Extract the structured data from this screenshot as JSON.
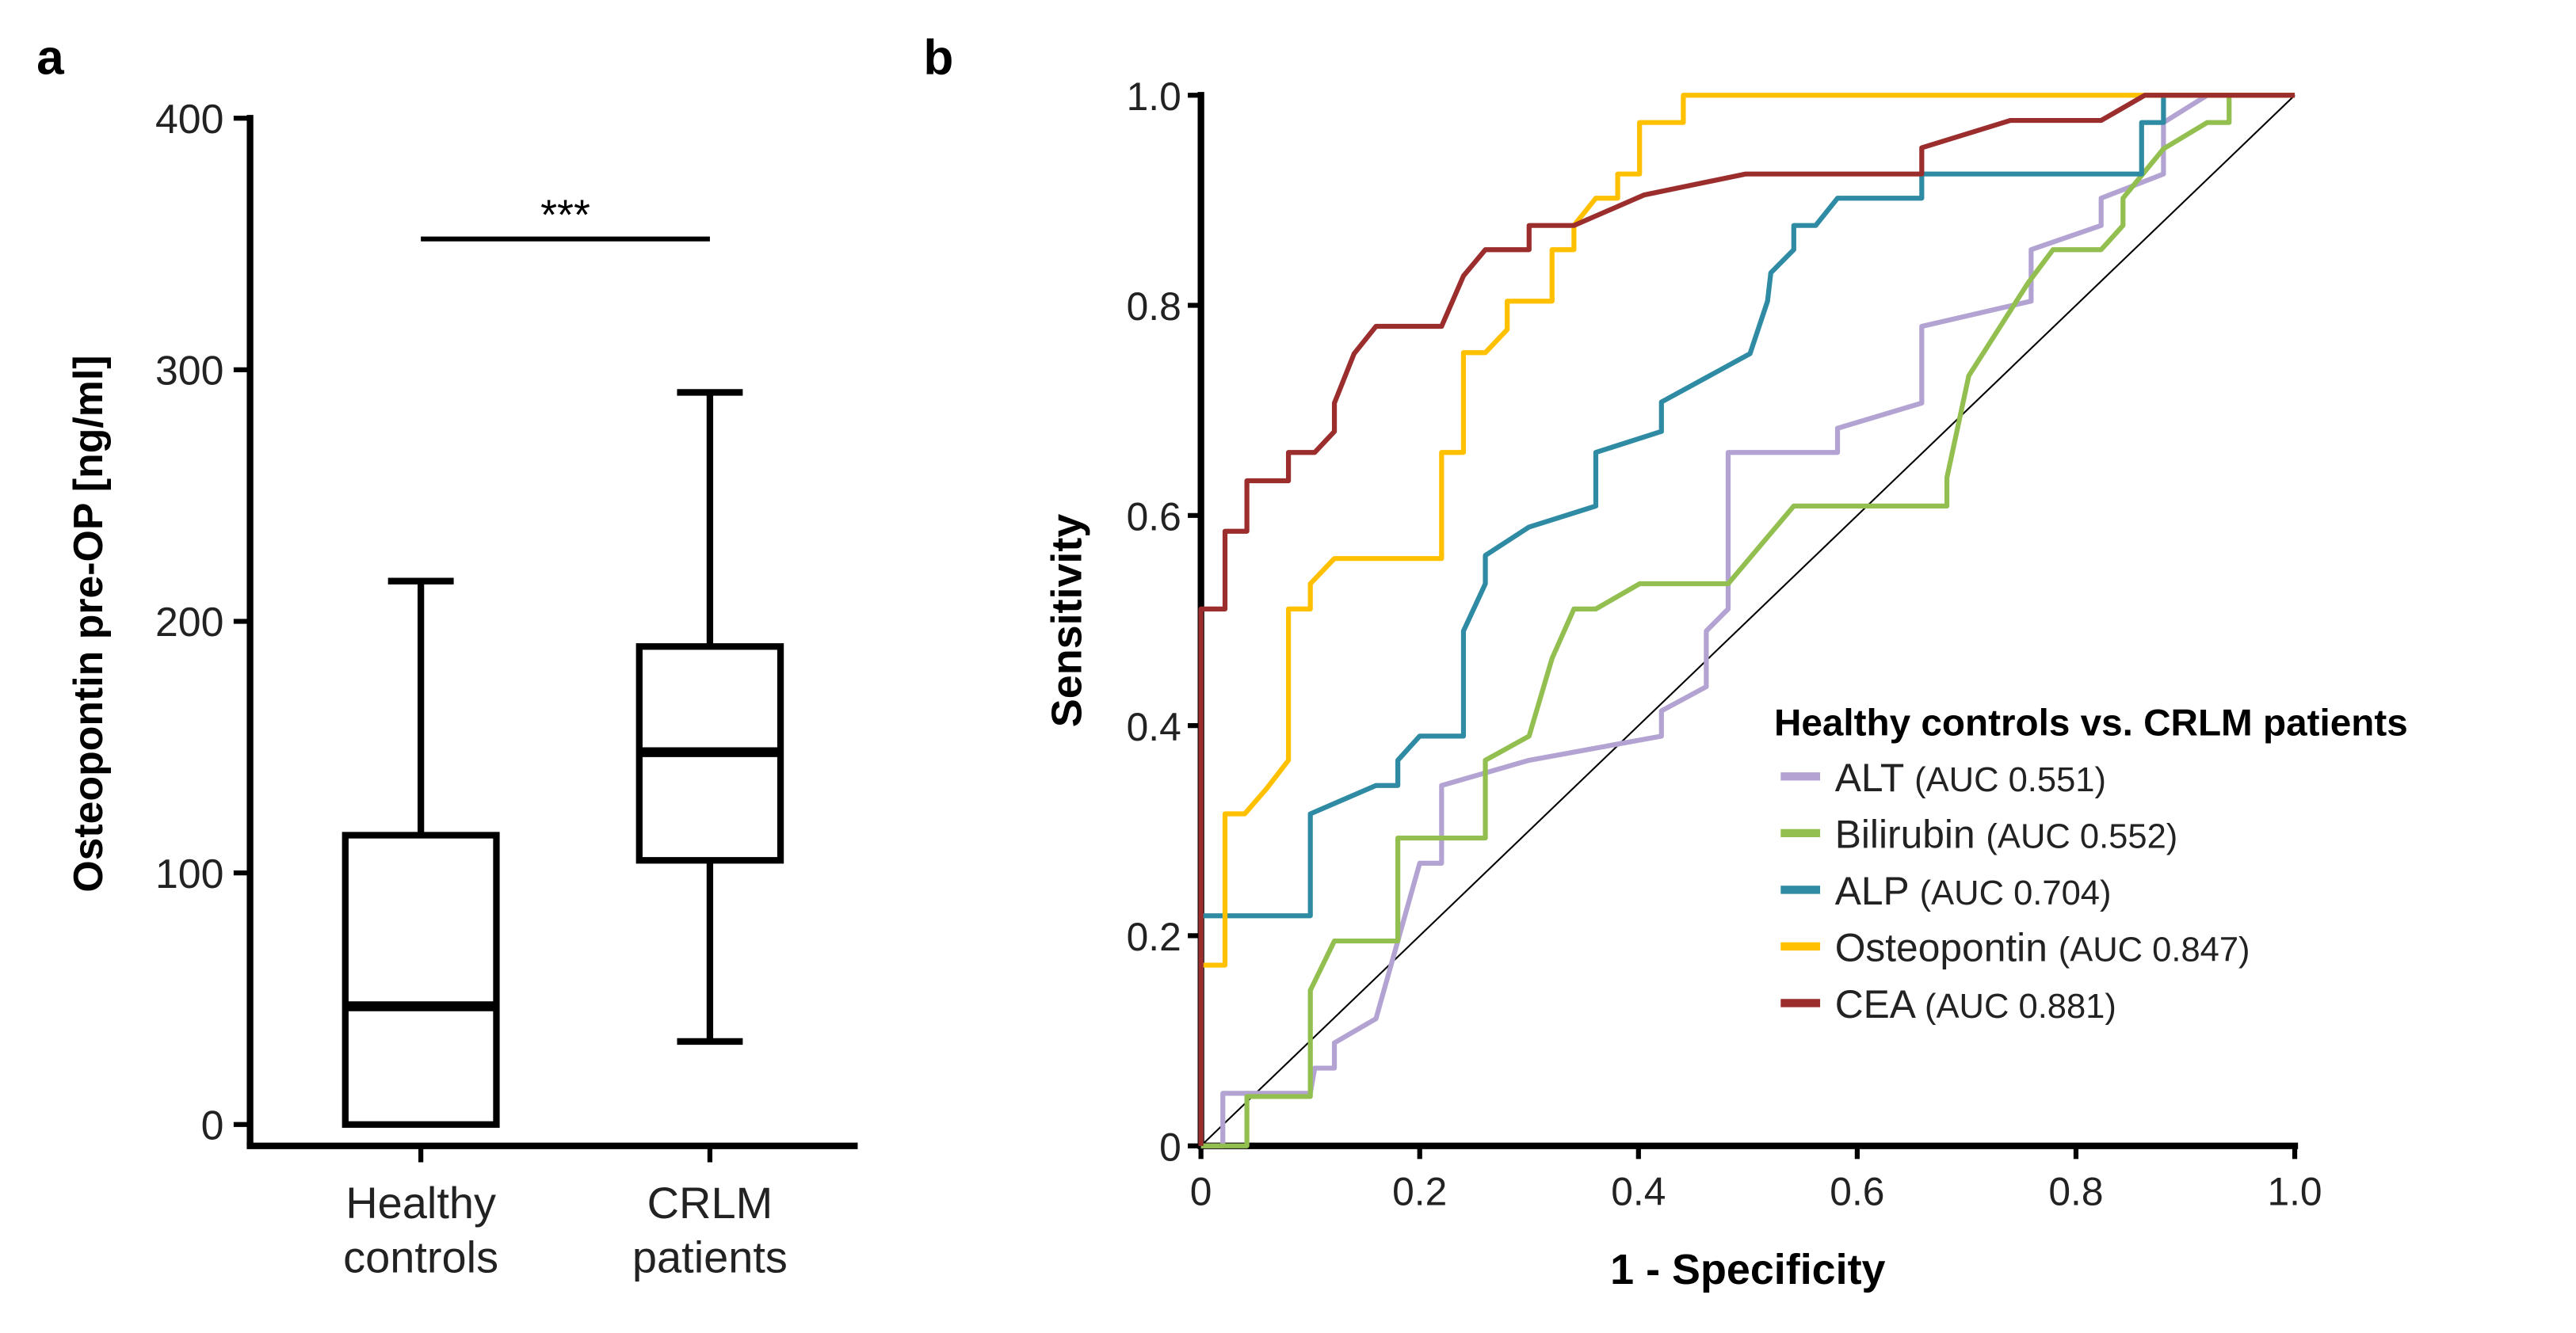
{
  "chart_data": [
    {
      "panel_label": "a",
      "type": "box",
      "ylabel": "Osteopontin pre-OP [ng/ml]",
      "ylim": [
        0,
        400
      ],
      "yticks": [
        "0",
        "100",
        "200",
        "300",
        "400"
      ],
      "categories": [
        [
          "Healthy",
          "controls"
        ],
        [
          "CRLM",
          "patients"
        ]
      ],
      "boxes": [
        {
          "name": "Healthy controls",
          "min": 0,
          "q1": 0,
          "median": 47,
          "q3": 115,
          "max": 216
        },
        {
          "name": "CRLM patients",
          "min": 33,
          "q1": 105,
          "median": 148,
          "q3": 190,
          "max": 291
        }
      ],
      "significance": {
        "label": "***",
        "value": 352
      }
    },
    {
      "panel_label": "b",
      "type": "line",
      "xlabel": "1 - Specificity",
      "ylabel": "Sensitivity",
      "xlim": [
        0,
        1
      ],
      "ylim": [
        0,
        1
      ],
      "xticks": [
        "0",
        "0.2",
        "0.4",
        "0.6",
        "0.8",
        "1.0"
      ],
      "yticks": [
        "0",
        "0.2",
        "0.4",
        "0.6",
        "0.8",
        "1.0"
      ],
      "legend": {
        "title": "Healthy controls vs. CRLM patients",
        "placement": "bottom-right"
      },
      "series": [
        {
          "name": "ALT",
          "auc_label": "(AUC 0.551)",
          "color": "#b3a3d2",
          "points": [
            [
              0,
              0
            ],
            [
              0.02,
              0
            ],
            [
              0.02,
              0.05
            ],
            [
              0.1,
              0.05
            ],
            [
              0.104,
              0.074
            ],
            [
              0.122,
              0.074
            ],
            [
              0.122,
              0.098
            ],
            [
              0.16,
              0.121
            ],
            [
              0.2,
              0.269
            ],
            [
              0.22,
              0.269
            ],
            [
              0.22,
              0.343
            ],
            [
              0.3,
              0.367
            ],
            [
              0.421,
              0.39
            ],
            [
              0.421,
              0.414
            ],
            [
              0.462,
              0.437
            ],
            [
              0.462,
              0.49
            ],
            [
              0.482,
              0.511
            ],
            [
              0.482,
              0.66
            ],
            [
              0.582,
              0.66
            ],
            [
              0.582,
              0.683
            ],
            [
              0.659,
              0.707
            ],
            [
              0.659,
              0.78
            ],
            [
              0.759,
              0.804
            ],
            [
              0.759,
              0.853
            ],
            [
              0.823,
              0.876
            ],
            [
              0.823,
              0.902
            ],
            [
              0.88,
              0.925
            ],
            [
              0.88,
              0.974
            ],
            [
              0.92,
              1
            ],
            [
              1,
              1
            ]
          ]
        },
        {
          "name": "Bilirubin",
          "auc_label": "(AUC 0.552)",
          "color": "#92bf4f",
          "points": [
            [
              0,
              0
            ],
            [
              0.042,
              0
            ],
            [
              0.042,
              0.047
            ],
            [
              0.1,
              0.047
            ],
            [
              0.1,
              0.148
            ],
            [
              0.122,
              0.195
            ],
            [
              0.18,
              0.195
            ],
            [
              0.18,
              0.293
            ],
            [
              0.26,
              0.293
            ],
            [
              0.26,
              0.367
            ],
            [
              0.3,
              0.39
            ],
            [
              0.321,
              0.464
            ],
            [
              0.341,
              0.511
            ],
            [
              0.361,
              0.511
            ],
            [
              0.401,
              0.535
            ],
            [
              0.482,
              0.535
            ],
            [
              0.542,
              0.609
            ],
            [
              0.682,
              0.609
            ],
            [
              0.682,
              0.636
            ],
            [
              0.702,
              0.733
            ],
            [
              0.756,
              0.821
            ],
            [
              0.779,
              0.853
            ],
            [
              0.823,
              0.853
            ],
            [
              0.843,
              0.876
            ],
            [
              0.843,
              0.902
            ],
            [
              0.88,
              0.949
            ],
            [
              0.92,
              0.974
            ],
            [
              0.94,
              0.974
            ],
            [
              0.94,
              1
            ],
            [
              1,
              1
            ]
          ]
        },
        {
          "name": "ALP",
          "auc_label": "(AUC 0.704)",
          "color": "#2e8ba3",
          "points": [
            [
              0,
              0
            ],
            [
              0,
              0.219
            ],
            [
              0.1,
              0.219
            ],
            [
              0.1,
              0.316
            ],
            [
              0.16,
              0.343
            ],
            [
              0.18,
              0.343
            ],
            [
              0.18,
              0.367
            ],
            [
              0.2,
              0.39
            ],
            [
              0.24,
              0.39
            ],
            [
              0.24,
              0.49
            ],
            [
              0.26,
              0.535
            ],
            [
              0.26,
              0.562
            ],
            [
              0.3,
              0.589
            ],
            [
              0.361,
              0.609
            ],
            [
              0.361,
              0.66
            ],
            [
              0.421,
              0.68
            ],
            [
              0.421,
              0.708
            ],
            [
              0.502,
              0.754
            ],
            [
              0.518,
              0.804
            ],
            [
              0.521,
              0.831
            ],
            [
              0.542,
              0.853
            ],
            [
              0.542,
              0.876
            ],
            [
              0.562,
              0.876
            ],
            [
              0.582,
              0.902
            ],
            [
              0.659,
              0.902
            ],
            [
              0.659,
              0.925
            ],
            [
              0.86,
              0.925
            ],
            [
              0.86,
              0.974
            ],
            [
              0.88,
              0.974
            ],
            [
              0.88,
              1
            ],
            [
              1,
              1
            ]
          ]
        },
        {
          "name": "Osteopontin",
          "auc_label": "(AUC 0.847)",
          "color": "#ffc000",
          "points": [
            [
              0,
              0.172
            ],
            [
              0.022,
              0.172
            ],
            [
              0.022,
              0.316
            ],
            [
              0.04,
              0.316
            ],
            [
              0.06,
              0.34
            ],
            [
              0.08,
              0.367
            ],
            [
              0.08,
              0.511
            ],
            [
              0.1,
              0.511
            ],
            [
              0.1,
              0.535
            ],
            [
              0.122,
              0.559
            ],
            [
              0.22,
              0.559
            ],
            [
              0.22,
              0.66
            ],
            [
              0.24,
              0.66
            ],
            [
              0.24,
              0.755
            ],
            [
              0.26,
              0.755
            ],
            [
              0.28,
              0.777
            ],
            [
              0.28,
              0.804
            ],
            [
              0.321,
              0.804
            ],
            [
              0.321,
              0.853
            ],
            [
              0.341,
              0.853
            ],
            [
              0.341,
              0.876
            ],
            [
              0.361,
              0.902
            ],
            [
              0.381,
              0.902
            ],
            [
              0.381,
              0.925
            ],
            [
              0.401,
              0.925
            ],
            [
              0.401,
              0.974
            ],
            [
              0.441,
              0.974
            ],
            [
              0.441,
              1
            ],
            [
              1,
              1
            ]
          ]
        },
        {
          "name": "CEA",
          "auc_label": "(AUC 0.881)",
          "color": "#9b2d2d",
          "points": [
            [
              0,
              0
            ],
            [
              0,
              0.511
            ],
            [
              0.022,
              0.511
            ],
            [
              0.022,
              0.585
            ],
            [
              0.042,
              0.585
            ],
            [
              0.042,
              0.633
            ],
            [
              0.08,
              0.633
            ],
            [
              0.08,
              0.66
            ],
            [
              0.104,
              0.66
            ],
            [
              0.122,
              0.68
            ],
            [
              0.122,
              0.707
            ],
            [
              0.14,
              0.754
            ],
            [
              0.16,
              0.78
            ],
            [
              0.22,
              0.78
            ],
            [
              0.24,
              0.828
            ],
            [
              0.26,
              0.853
            ],
            [
              0.3,
              0.853
            ],
            [
              0.3,
              0.876
            ],
            [
              0.341,
              0.876
            ],
            [
              0.405,
              0.905
            ],
            [
              0.498,
              0.925
            ],
            [
              0.659,
              0.925
            ],
            [
              0.659,
              0.95
            ],
            [
              0.74,
              0.976
            ],
            [
              0.823,
              0.976
            ],
            [
              0.863,
              1
            ],
            [
              1,
              1
            ]
          ]
        }
      ],
      "reference_line": [
        [
          0,
          0
        ],
        [
          1,
          1
        ]
      ]
    }
  ]
}
